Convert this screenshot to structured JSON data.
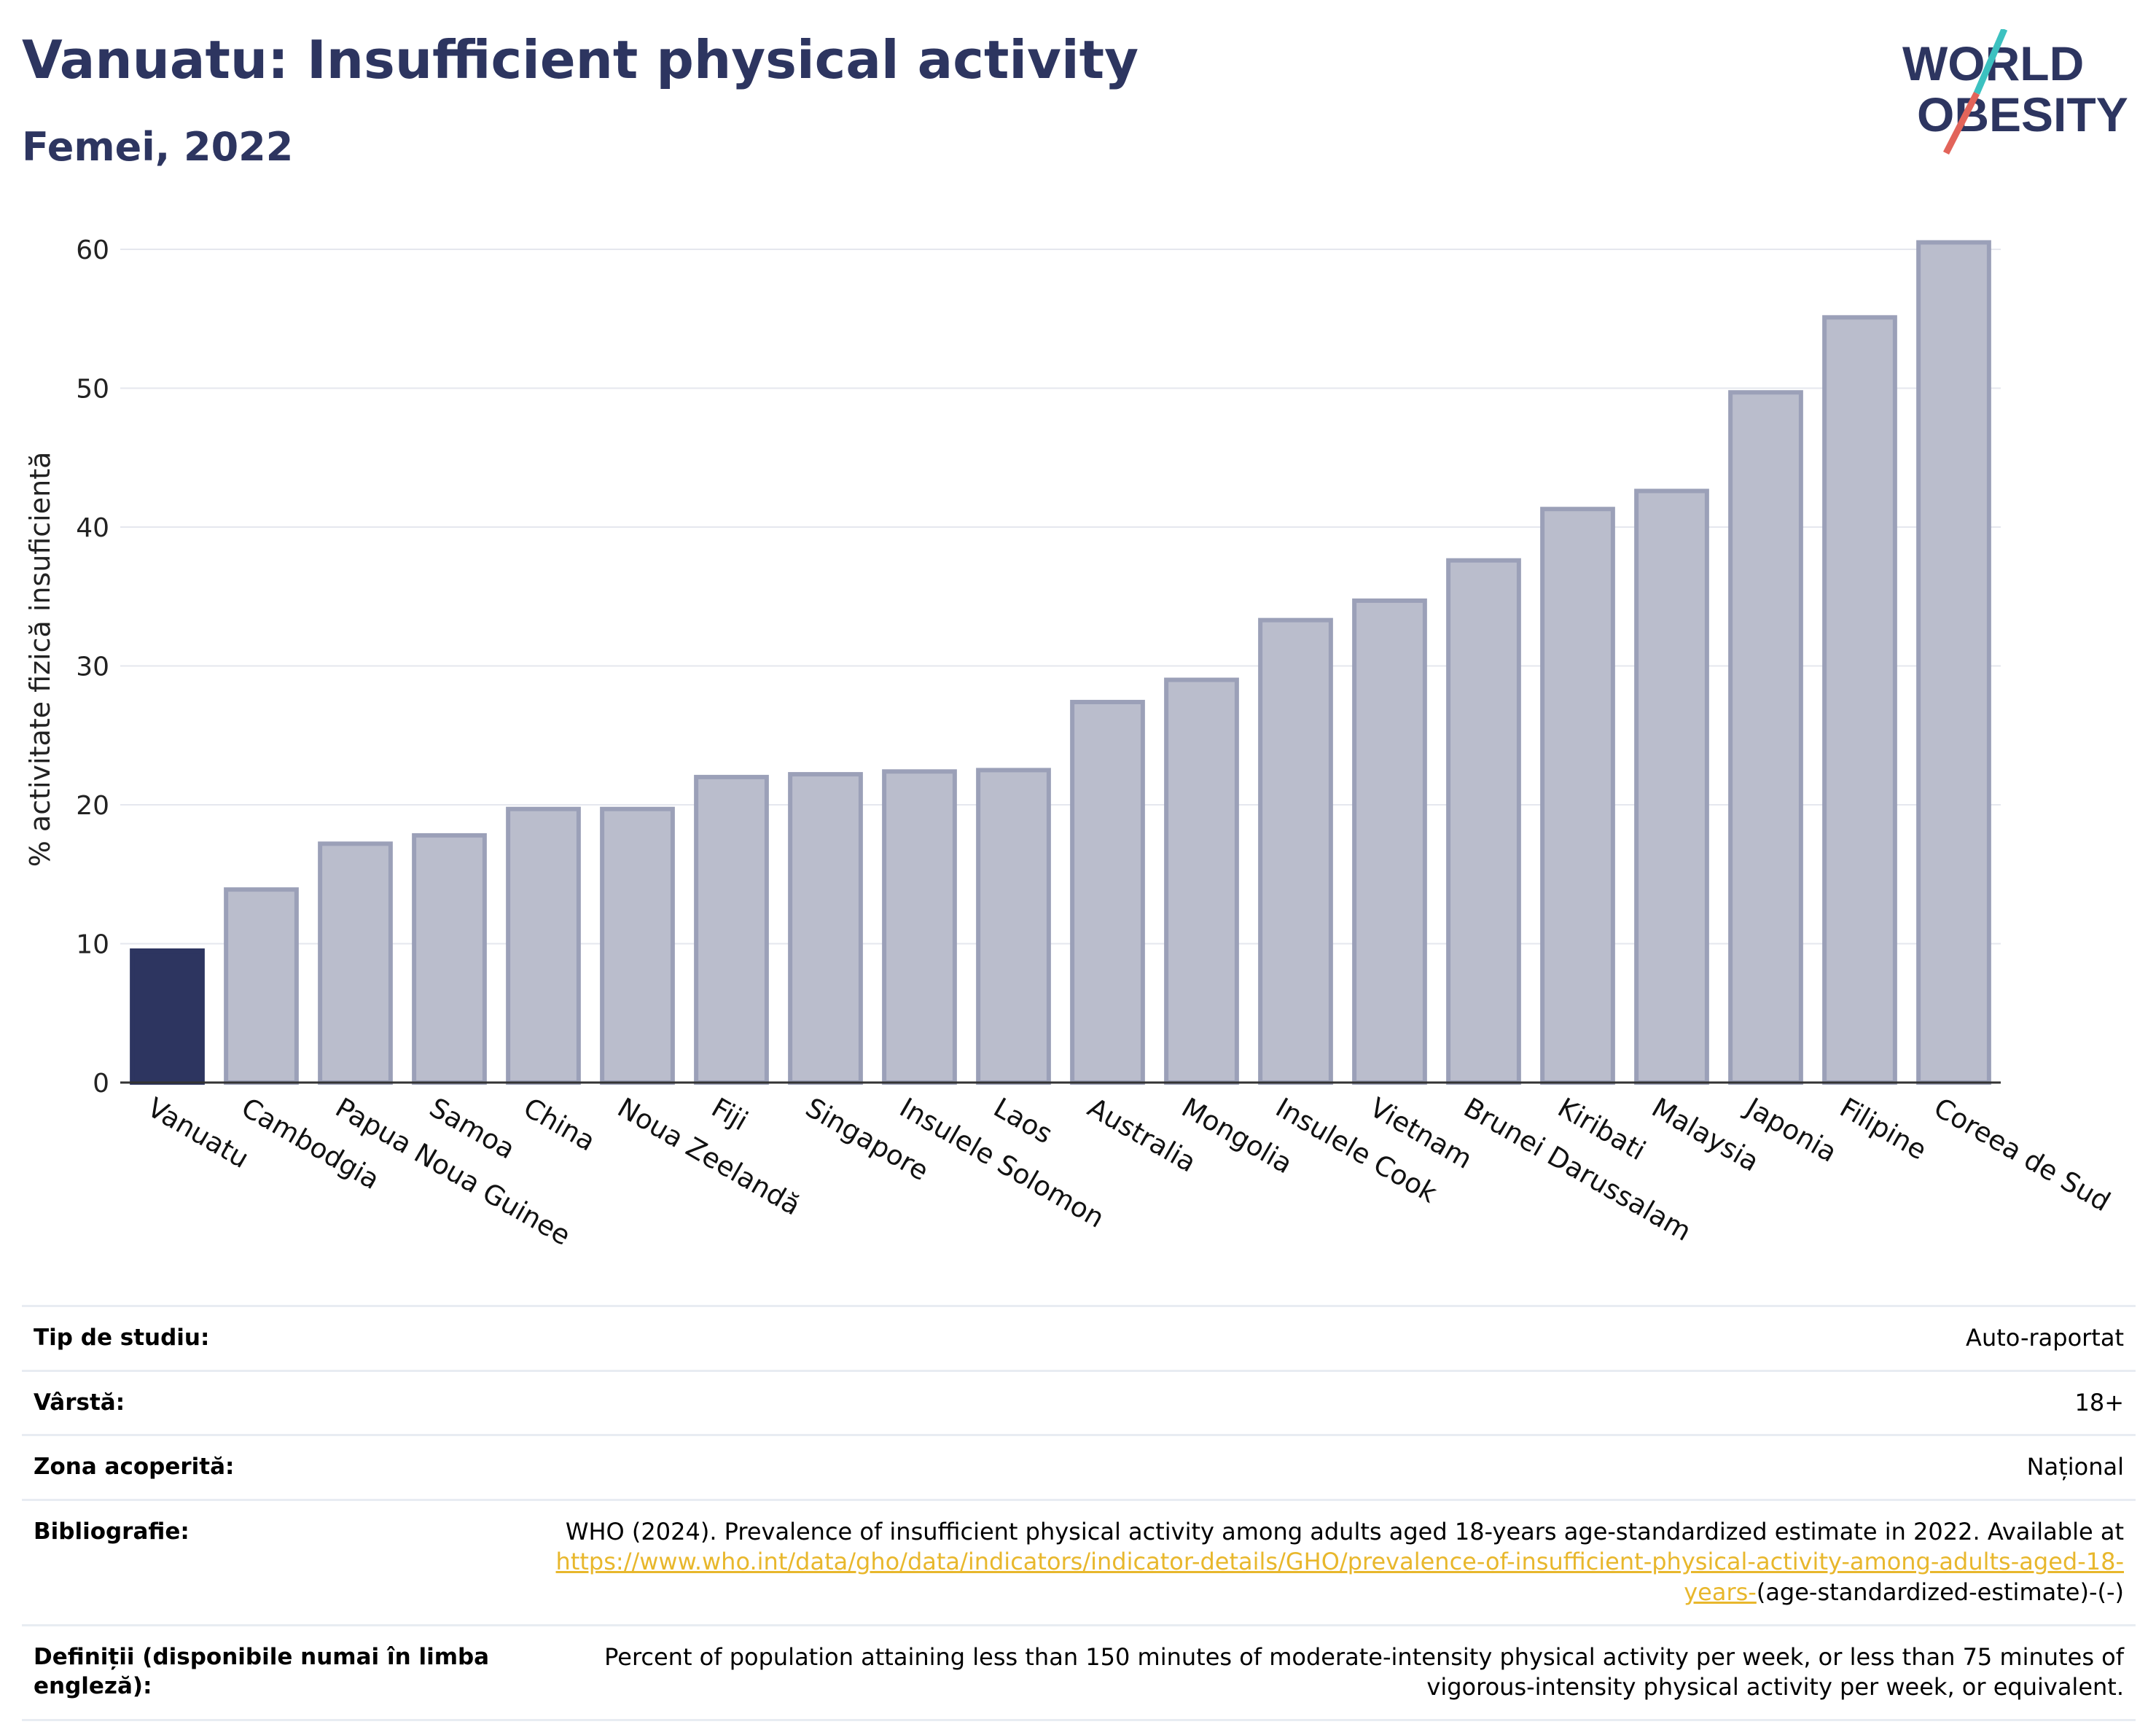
{
  "header": {
    "title": "Vanuatu: Insufficient physical activity",
    "subtitle": "Femei, 2022",
    "logo_line1": "WORLD",
    "logo_line2": "OBESITY"
  },
  "colors": {
    "highlight": "#2d3560",
    "bar": "#babdcc",
    "bar_border": "#9ba0b8",
    "title": "#2d3560",
    "grid": "#e5e7ee",
    "link": "#e8b72c",
    "logo_teal": "#3cc1c0",
    "logo_red": "#e2645a"
  },
  "chart_data": {
    "type": "bar",
    "title": "",
    "ylabel": "% activitate fizică insuficientă",
    "xlabel": "",
    "ylim": [
      0,
      62
    ],
    "yticks": [
      0,
      10,
      20,
      30,
      40,
      50,
      60
    ],
    "grid": true,
    "highlight_category": "Vanuatu",
    "categories": [
      "Vanuatu",
      "Cambodgia",
      "Papua Noua Guinee",
      "Samoa",
      "China",
      "Noua Zeelandă",
      "Fiji",
      "Singapore",
      "Insulele Solomon",
      "Laos",
      "Australia",
      "Mongolia",
      "Insulele Cook",
      "Vietnam",
      "Brunei Darussalam",
      "Kiribati",
      "Malaysia",
      "Japonia",
      "Filipine",
      "Coreea de Sud"
    ],
    "values": [
      9.5,
      13.9,
      17.2,
      17.8,
      19.7,
      19.7,
      22.0,
      22.2,
      22.4,
      22.5,
      27.4,
      29.0,
      33.3,
      34.7,
      37.6,
      41.3,
      42.6,
      49.7,
      55.1,
      60.5
    ]
  },
  "meta": [
    {
      "label": "Tip de studiu:",
      "value": "Auto-raportat"
    },
    {
      "label": "Vârstă:",
      "value": "18+"
    },
    {
      "label": "Zona acoperită:",
      "value": "Național"
    },
    {
      "label": "Bibliografie:",
      "value": "WHO (2024). Prevalence of insufficient physical activity among adults aged 18-years age-standardized estimate in 2022. Available at",
      "link": "https://www.who.int/data/gho/data/indicators/indicator-details/GHO/prevalence-of-insufficient-physical-activity-among-adults-aged-18-years-",
      "suffix": "(age-standardized-estimate)-(-)"
    },
    {
      "label": "Definiții (disponibile numai în limba engleză):",
      "value": "Percent of population attaining less than 150 minutes of moderate-intensity physical activity per week, or less than 75 minutes of vigorous-intensity physical activity per week, or equivalent."
    }
  ]
}
